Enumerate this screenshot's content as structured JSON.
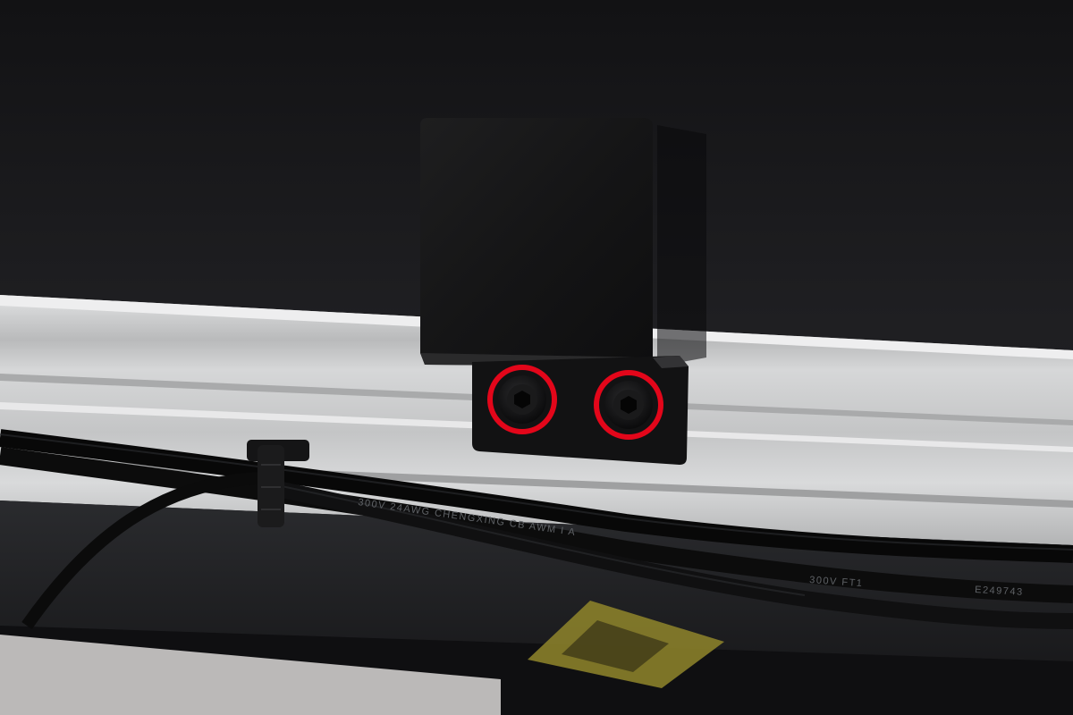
{
  "photo": {
    "subject": "black L-shaped mounting bracket fastened with two hex socket screws to an aluminum extrusion rail, with black cables held by a zip tie below",
    "colors": {
      "background_panel": "#161618",
      "aluminum_rail": "#c9cacb",
      "bracket": "#141414",
      "highlight_ring": "#e3061a",
      "cable": "#0c0c0c",
      "warning_label": "#8a7f2a"
    },
    "cable_printing": {
      "cable_1": "300V  24AWG  CHENGXING  CB  AWM  I  A",
      "cable_2": "300V  FT1",
      "cable_3": "E249743"
    },
    "highlights": {
      "count": 2,
      "target": "hex socket screw"
    }
  }
}
